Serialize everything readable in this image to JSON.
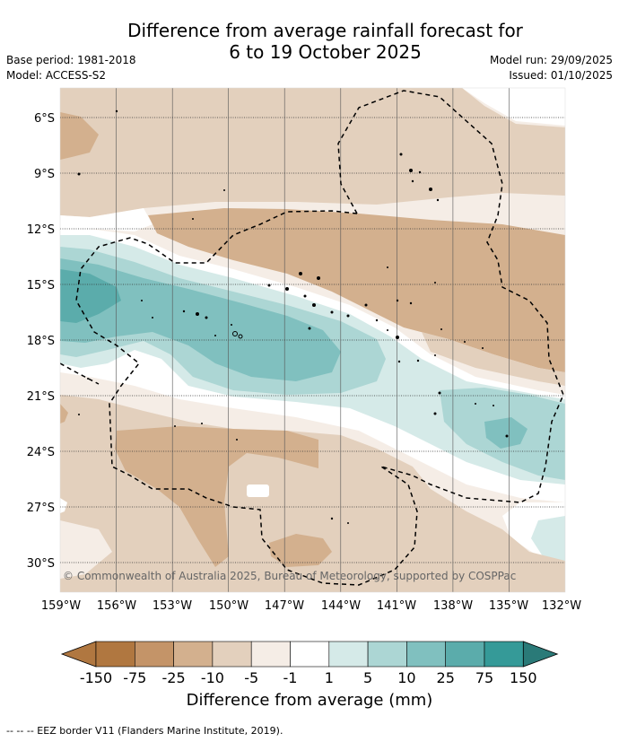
{
  "title_line1": "Difference from average rainfall forecast for",
  "title_line2": "6 to 19 October 2025",
  "base_period": "Base period: 1981-2018",
  "model": "Model: ACCESS-S2",
  "model_run": "Model run: 29/09/2025",
  "issued": "Issued: 01/10/2025",
  "lat_labels": [
    "6°S",
    "9°S",
    "12°S",
    "15°S",
    "18°S",
    "21°S",
    "24°S",
    "27°S",
    "30°S"
  ],
  "lon_labels": [
    "159°W",
    "156°W",
    "153°W",
    "150°W",
    "147°W",
    "144°W",
    "141°W",
    "138°W",
    "135°W",
    "132°W"
  ],
  "copyright": "© Commonwealth of Australia 2025, Bureau of Meteorology, supported by COSPPac",
  "colorbar": {
    "labels": [
      "-150",
      "-75",
      "-25",
      "-10",
      "-5",
      "-1",
      "1",
      "5",
      "10",
      "25",
      "75",
      "150"
    ],
    "colors": [
      "#b07740",
      "#c49468",
      "#d3b08e",
      "#e3d0bd",
      "#f5ede6",
      "#ffffff",
      "#d5eae8",
      "#acd6d4",
      "#80c0bf",
      "#5bacab",
      "#359a98"
    ],
    "title": "Difference from average (mm)"
  },
  "footer": "--  --  -- EEZ border V11 (Flanders Marine Institute, 2019)."
}
